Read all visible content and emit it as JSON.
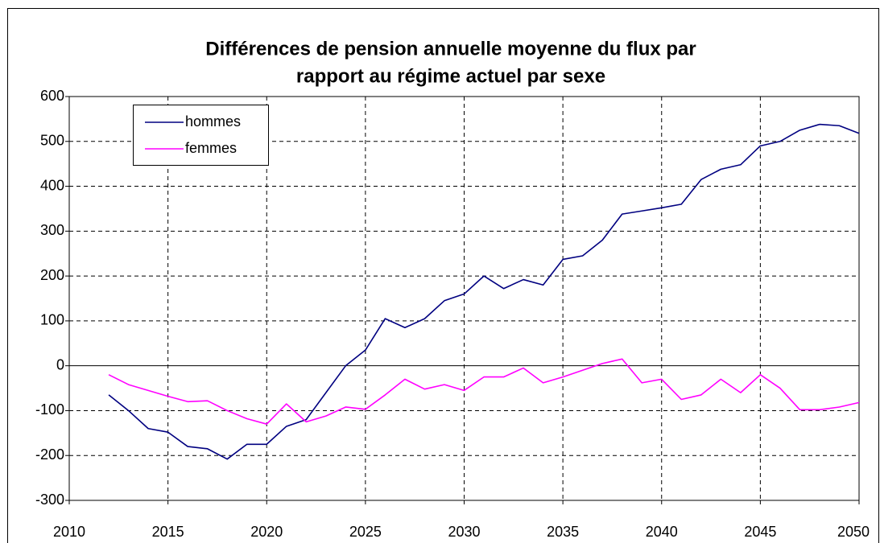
{
  "chart_data": {
    "type": "line",
    "title": [
      "Différences de pension annuelle moyenne du flux par",
      "rapport au régime actuel par sexe"
    ],
    "x": [
      2012,
      2013,
      2014,
      2015,
      2016,
      2017,
      2018,
      2019,
      2020,
      2021,
      2022,
      2023,
      2024,
      2025,
      2026,
      2027,
      2028,
      2029,
      2030,
      2031,
      2032,
      2033,
      2034,
      2035,
      2036,
      2037,
      2038,
      2039,
      2040,
      2041,
      2042,
      2043,
      2044,
      2045,
      2046,
      2047,
      2048,
      2049,
      2050
    ],
    "series": [
      {
        "name": "hommes",
        "color": "#000080",
        "values": [
          -65,
          -100,
          -140,
          -148,
          -180,
          -185,
          -208,
          -175,
          -175,
          -135,
          -120,
          -60,
          0,
          35,
          105,
          85,
          105,
          145,
          160,
          200,
          172,
          192,
          180,
          237,
          245,
          280,
          338,
          345,
          352,
          360,
          415,
          438,
          448,
          490,
          500,
          525,
          538,
          535,
          518
        ]
      },
      {
        "name": "femmes",
        "color": "#ff00ff",
        "values": [
          -20,
          -42,
          -55,
          -68,
          -80,
          -78,
          -100,
          -118,
          -130,
          -85,
          -125,
          -112,
          -92,
          -97,
          -65,
          -30,
          -52,
          -42,
          -55,
          -25,
          -25,
          -5,
          -38,
          -25,
          -10,
          5,
          15,
          -38,
          -30,
          -75,
          -65,
          -30,
          -60,
          -20,
          -50,
          -98,
          -98,
          -92,
          -82
        ]
      }
    ],
    "xlim": [
      2010,
      2050
    ],
    "xticks": [
      2010,
      2015,
      2020,
      2025,
      2030,
      2035,
      2040,
      2045,
      2050
    ],
    "ylim": [
      -300,
      600
    ],
    "yticks": [
      -300,
      -200,
      -100,
      0,
      100,
      200,
      300,
      400,
      500,
      600
    ],
    "grid": true,
    "legend": "upper left"
  }
}
